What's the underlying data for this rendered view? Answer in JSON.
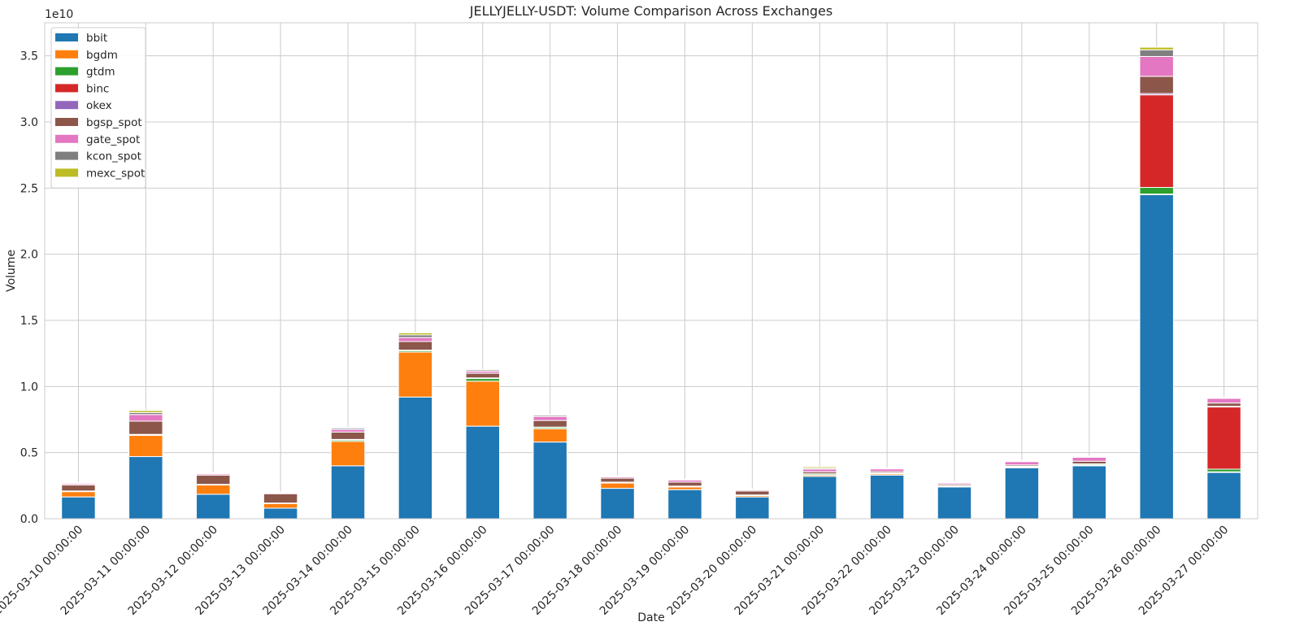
{
  "chart_data": {
    "type": "bar",
    "stacked": true,
    "title": "JELLYJELLY-USDT: Volume Comparison Across Exchanges",
    "xlabel": "Date",
    "ylabel": "Volume",
    "y_multiplier_label": "1e10",
    "y_unit_scale": 10000000000,
    "ylim": [
      0,
      3.75
    ],
    "yticks": [
      0.0,
      0.5,
      1.0,
      1.5,
      2.0,
      2.5,
      3.0,
      3.5
    ],
    "ytick_labels": [
      "0.0",
      "0.5",
      "1.0",
      "1.5",
      "2.0",
      "2.5",
      "3.0",
      "3.5"
    ],
    "grid": true,
    "legend_position": "top-left",
    "categories": [
      "2025-03-10 00:00:00",
      "2025-03-11 00:00:00",
      "2025-03-12 00:00:00",
      "2025-03-13 00:00:00",
      "2025-03-14 00:00:00",
      "2025-03-15 00:00:00",
      "2025-03-16 00:00:00",
      "2025-03-17 00:00:00",
      "2025-03-18 00:00:00",
      "2025-03-19 00:00:00",
      "2025-03-20 00:00:00",
      "2025-03-21 00:00:00",
      "2025-03-22 00:00:00",
      "2025-03-23 00:00:00",
      "2025-03-24 00:00:00",
      "2025-03-25 00:00:00",
      "2025-03-26 00:00:00",
      "2025-03-27 00:00:00"
    ],
    "series": [
      {
        "name": "bbit",
        "color": "#1f77b4",
        "values": [
          0.165,
          0.47,
          0.185,
          0.08,
          0.4,
          0.92,
          0.7,
          0.58,
          0.23,
          0.22,
          0.165,
          0.32,
          0.33,
          0.24,
          0.385,
          0.4,
          2.45,
          0.35
        ]
      },
      {
        "name": "bgdm",
        "color": "#ff7f0e",
        "values": [
          0.04,
          0.16,
          0.07,
          0.035,
          0.185,
          0.34,
          0.34,
          0.1,
          0.04,
          0.02,
          0.01,
          0.01,
          0.01,
          0.005,
          0.005,
          0.005,
          0.005,
          0.005
        ]
      },
      {
        "name": "gtdm",
        "color": "#2ca02c",
        "values": [
          0.003,
          0.005,
          0.003,
          0.002,
          0.01,
          0.01,
          0.02,
          0.01,
          0.005,
          0.005,
          0.003,
          0.008,
          0.005,
          0.003,
          0.005,
          0.008,
          0.05,
          0.02
        ]
      },
      {
        "name": "binc",
        "color": "#d62728",
        "values": [
          0,
          0,
          0,
          0,
          0,
          0,
          0,
          0,
          0,
          0,
          0,
          0,
          0,
          0,
          0,
          0,
          0.7,
          0.47
        ]
      },
      {
        "name": "okex",
        "color": "#9467bd",
        "values": [
          0.002,
          0.003,
          0.002,
          0.002,
          0.005,
          0.005,
          0.005,
          0.003,
          0.002,
          0.002,
          0.002,
          0.002,
          0.002,
          0.002,
          0.002,
          0.002,
          0.01,
          0.005
        ]
      },
      {
        "name": "bgsp_spot",
        "color": "#8c564b",
        "values": [
          0.045,
          0.1,
          0.07,
          0.07,
          0.055,
          0.065,
          0.035,
          0.05,
          0.03,
          0.03,
          0.03,
          0.015,
          0.01,
          0.01,
          0.01,
          0.02,
          0.13,
          0.025
        ]
      },
      {
        "name": "gate_spot",
        "color": "#e377c2",
        "values": [
          0.01,
          0.05,
          0.01,
          0.007,
          0.02,
          0.03,
          0.015,
          0.03,
          0.01,
          0.015,
          0.008,
          0.02,
          0.02,
          0.01,
          0.025,
          0.03,
          0.15,
          0.035
        ]
      },
      {
        "name": "kcon_spot",
        "color": "#7f7f7f",
        "values": [
          0.005,
          0.015,
          0.004,
          0.004,
          0.01,
          0.02,
          0.01,
          0.01,
          0.005,
          0.005,
          0.004,
          0.008,
          0.005,
          0.005,
          0.005,
          0.005,
          0.05,
          0.005
        ]
      },
      {
        "name": "mexc_spot",
        "color": "#bcbd22",
        "values": [
          0.005,
          0.015,
          0.003,
          0.003,
          0.005,
          0.015,
          0.005,
          0.005,
          0.003,
          0.003,
          0.003,
          0.01,
          0.003,
          0.003,
          0.003,
          0.003,
          0.02,
          0.005
        ]
      }
    ]
  }
}
